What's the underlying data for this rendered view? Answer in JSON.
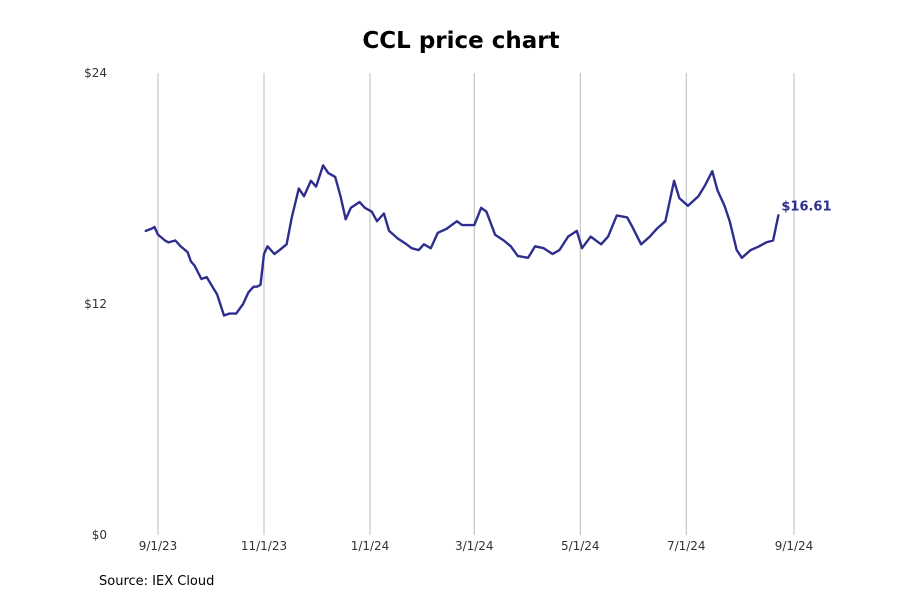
{
  "chart_data": {
    "type": "line",
    "title": "CCL price chart",
    "source": "Source: IEX Cloud",
    "xlabel": "",
    "ylabel": "",
    "y_tick_labels": [
      "$0",
      "$12",
      "$24"
    ],
    "y_ticks": [
      0,
      12,
      24
    ],
    "ylim": [
      0,
      24
    ],
    "x_tick_labels": [
      "9/1/23",
      "11/1/23",
      "1/1/24",
      "3/1/24",
      "5/1/24",
      "7/1/24",
      "9/1/24"
    ],
    "x_ticks": [
      "2023-09-01",
      "2023-11-01",
      "2024-01-01",
      "2024-03-01",
      "2024-05-01",
      "2024-07-01",
      "2024-09-01"
    ],
    "grid": "vertical",
    "line_color": "#2e2e8f",
    "last_value_label": "$16.61",
    "series": [
      {
        "x": [
          "2023-08-25",
          "2023-08-28",
          "2023-08-30",
          "2023-09-01",
          "2023-09-05",
          "2023-09-07",
          "2023-09-11",
          "2023-09-14",
          "2023-09-18",
          "2023-09-20",
          "2023-09-22",
          "2023-09-26",
          "2023-09-29",
          "2023-10-03",
          "2023-10-05",
          "2023-10-09",
          "2023-10-12",
          "2023-10-16",
          "2023-10-20",
          "2023-10-23",
          "2023-10-26",
          "2023-10-28",
          "2023-10-30",
          "2023-11-01",
          "2023-11-03",
          "2023-11-07",
          "2023-11-10",
          "2023-11-14",
          "2023-11-17",
          "2023-11-21",
          "2023-11-24",
          "2023-11-28",
          "2023-12-01",
          "2023-12-05",
          "2023-12-08",
          "2023-12-12",
          "2023-12-15",
          "2023-12-18",
          "2023-12-21",
          "2023-12-26",
          "2023-12-29",
          "2024-01-02",
          "2024-01-05",
          "2024-01-09",
          "2024-01-12",
          "2024-01-17",
          "2024-01-22",
          "2024-01-25",
          "2024-01-29",
          "2024-02-01",
          "2024-02-05",
          "2024-02-09",
          "2024-02-14",
          "2024-02-20",
          "2024-02-23",
          "2024-02-27",
          "2024-03-01",
          "2024-03-05",
          "2024-03-08",
          "2024-03-13",
          "2024-03-18",
          "2024-03-22",
          "2024-03-26",
          "2024-04-01",
          "2024-04-05",
          "2024-04-10",
          "2024-04-15",
          "2024-04-19",
          "2024-04-24",
          "2024-04-29",
          "2024-05-02",
          "2024-05-07",
          "2024-05-13",
          "2024-05-17",
          "2024-05-22",
          "2024-05-28",
          "2024-05-31",
          "2024-06-05",
          "2024-06-10",
          "2024-06-14",
          "2024-06-19",
          "2024-06-24",
          "2024-06-27",
          "2024-07-02",
          "2024-07-08",
          "2024-07-12",
          "2024-07-16",
          "2024-07-19",
          "2024-07-23",
          "2024-07-26",
          "2024-07-30",
          "2024-08-02",
          "2024-08-07",
          "2024-08-12",
          "2024-08-16",
          "2024-08-20",
          "2024-08-23"
        ],
        "values": [
          15.8,
          15.9,
          16.0,
          15.6,
          15.3,
          15.2,
          15.3,
          15.0,
          14.7,
          14.2,
          14.0,
          13.3,
          13.4,
          12.8,
          12.5,
          11.4,
          11.5,
          11.5,
          12.0,
          12.6,
          12.9,
          12.9,
          13.0,
          14.6,
          15.0,
          14.6,
          14.8,
          15.1,
          16.5,
          18.0,
          17.6,
          18.4,
          18.1,
          19.2,
          18.8,
          18.6,
          17.6,
          16.4,
          17.0,
          17.3,
          17.0,
          16.8,
          16.3,
          16.7,
          15.8,
          15.4,
          15.1,
          14.9,
          14.8,
          15.1,
          14.9,
          15.7,
          15.9,
          16.3,
          16.1,
          16.1,
          16.1,
          17.0,
          16.8,
          15.6,
          15.3,
          15.0,
          14.5,
          14.4,
          15.0,
          14.9,
          14.6,
          14.8,
          15.5,
          15.8,
          14.9,
          15.5,
          15.1,
          15.5,
          16.6,
          16.5,
          16.0,
          15.1,
          15.5,
          15.9,
          16.3,
          18.4,
          17.5,
          17.1,
          17.6,
          18.2,
          18.9,
          17.9,
          17.1,
          16.3,
          14.8,
          14.4,
          14.8,
          15.0,
          15.2,
          15.3,
          16.61
        ]
      }
    ]
  }
}
